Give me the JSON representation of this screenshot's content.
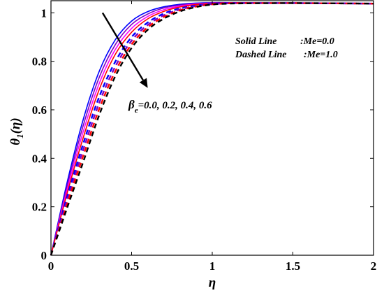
{
  "chart_data": {
    "type": "line",
    "xlabel": "η",
    "ylabel_main": "θ",
    "ylabel_sub": "1",
    "ylabel_arg": "(η)",
    "xlim": [
      0,
      2
    ],
    "ylim": [
      0,
      1.05
    ],
    "xticks": [
      0,
      0.5,
      1,
      1.5,
      2
    ],
    "xtick_labels": [
      "0",
      "0.5",
      "1",
      "1.5",
      "2"
    ],
    "yticks": [
      0,
      0.2,
      0.4,
      0.6,
      0.8,
      1
    ],
    "ytick_labels": [
      "0",
      "0.2",
      "0.4",
      "0.6",
      "0.8",
      "1"
    ],
    "legend": {
      "solid": {
        "name": "Solid Line",
        "value": ":Me=0.0"
      },
      "dashed": {
        "name": "Dashed Line",
        "value": ":Me=1.0"
      }
    },
    "annotation": {
      "symbol": "β",
      "sub": "e",
      "text": "=0.0, 0.2, 0.4, 0.6",
      "arrow_from": [
        0.32,
        1.0
      ],
      "arrow_to": [
        0.6,
        0.69
      ]
    },
    "series": [
      {
        "style": "solid",
        "color": "#0000ff",
        "x": [
          0,
          0.1,
          0.2,
          0.3,
          0.4,
          0.5,
          0.6,
          0.7,
          0.8,
          0.9,
          1.0,
          1.1,
          1.2,
          1.5,
          2.0
        ],
        "y": [
          0,
          0.3,
          0.56,
          0.76,
          0.89,
          0.966,
          1.005,
          1.025,
          1.035,
          1.04,
          1.042,
          1.042,
          1.041,
          1.04,
          1.038
        ]
      },
      {
        "style": "solid",
        "color": "#8000c0",
        "x": [
          0,
          0.1,
          0.2,
          0.3,
          0.4,
          0.5,
          0.6,
          0.7,
          0.8,
          0.9,
          1.0,
          1.1,
          1.2,
          1.5,
          2.0
        ],
        "y": [
          0,
          0.285,
          0.535,
          0.735,
          0.87,
          0.952,
          0.995,
          1.02,
          1.032,
          1.038,
          1.041,
          1.042,
          1.041,
          1.04,
          1.038
        ]
      },
      {
        "style": "solid",
        "color": "#ff00ff",
        "x": [
          0,
          0.1,
          0.2,
          0.3,
          0.4,
          0.5,
          0.6,
          0.7,
          0.8,
          0.9,
          1.0,
          1.1,
          1.2,
          1.5,
          2.0
        ],
        "y": [
          0,
          0.27,
          0.51,
          0.71,
          0.85,
          0.936,
          0.985,
          1.013,
          1.028,
          1.036,
          1.04,
          1.041,
          1.041,
          1.04,
          1.038
        ]
      },
      {
        "style": "solid",
        "color": "#ff0000",
        "x": [
          0,
          0.1,
          0.2,
          0.3,
          0.4,
          0.5,
          0.6,
          0.7,
          0.8,
          0.9,
          1.0,
          1.1,
          1.2,
          1.5,
          2.0
        ],
        "y": [
          0,
          0.255,
          0.485,
          0.685,
          0.83,
          0.92,
          0.975,
          1.006,
          1.024,
          1.034,
          1.039,
          1.041,
          1.041,
          1.04,
          1.038
        ]
      },
      {
        "style": "dashed",
        "color": "#0000ff",
        "x": [
          0,
          0.1,
          0.2,
          0.3,
          0.4,
          0.5,
          0.6,
          0.7,
          0.8,
          0.9,
          1.0,
          1.1,
          1.2,
          1.5,
          2.0
        ],
        "y": [
          0,
          0.24,
          0.46,
          0.655,
          0.8,
          0.9,
          0.96,
          0.997,
          1.018,
          1.03,
          1.037,
          1.04,
          1.04,
          1.04,
          1.038
        ]
      },
      {
        "style": "dashed",
        "color": "#8000c0",
        "x": [
          0,
          0.1,
          0.2,
          0.3,
          0.4,
          0.5,
          0.6,
          0.7,
          0.8,
          0.9,
          1.0,
          1.1,
          1.2,
          1.5,
          2.0
        ],
        "y": [
          0,
          0.225,
          0.435,
          0.63,
          0.78,
          0.885,
          0.95,
          0.99,
          1.014,
          1.028,
          1.036,
          1.039,
          1.04,
          1.04,
          1.038
        ]
      },
      {
        "style": "dashed",
        "color": "#ff0000",
        "x": [
          0,
          0.1,
          0.2,
          0.3,
          0.4,
          0.5,
          0.6,
          0.7,
          0.8,
          0.9,
          1.0,
          1.1,
          1.2,
          1.5,
          2.0
        ],
        "y": [
          0,
          0.21,
          0.41,
          0.605,
          0.76,
          0.87,
          0.94,
          0.983,
          1.01,
          1.026,
          1.035,
          1.039,
          1.04,
          1.04,
          1.038
        ]
      },
      {
        "style": "dashed",
        "color": "#000000",
        "x": [
          0,
          0.1,
          0.2,
          0.3,
          0.4,
          0.5,
          0.6,
          0.7,
          0.8,
          0.9,
          1.0,
          1.1,
          1.2,
          1.5,
          2.0
        ],
        "y": [
          0,
          0.195,
          0.385,
          0.58,
          0.74,
          0.855,
          0.93,
          0.976,
          1.006,
          1.024,
          1.034,
          1.038,
          1.039,
          1.04,
          1.038
        ]
      }
    ]
  }
}
